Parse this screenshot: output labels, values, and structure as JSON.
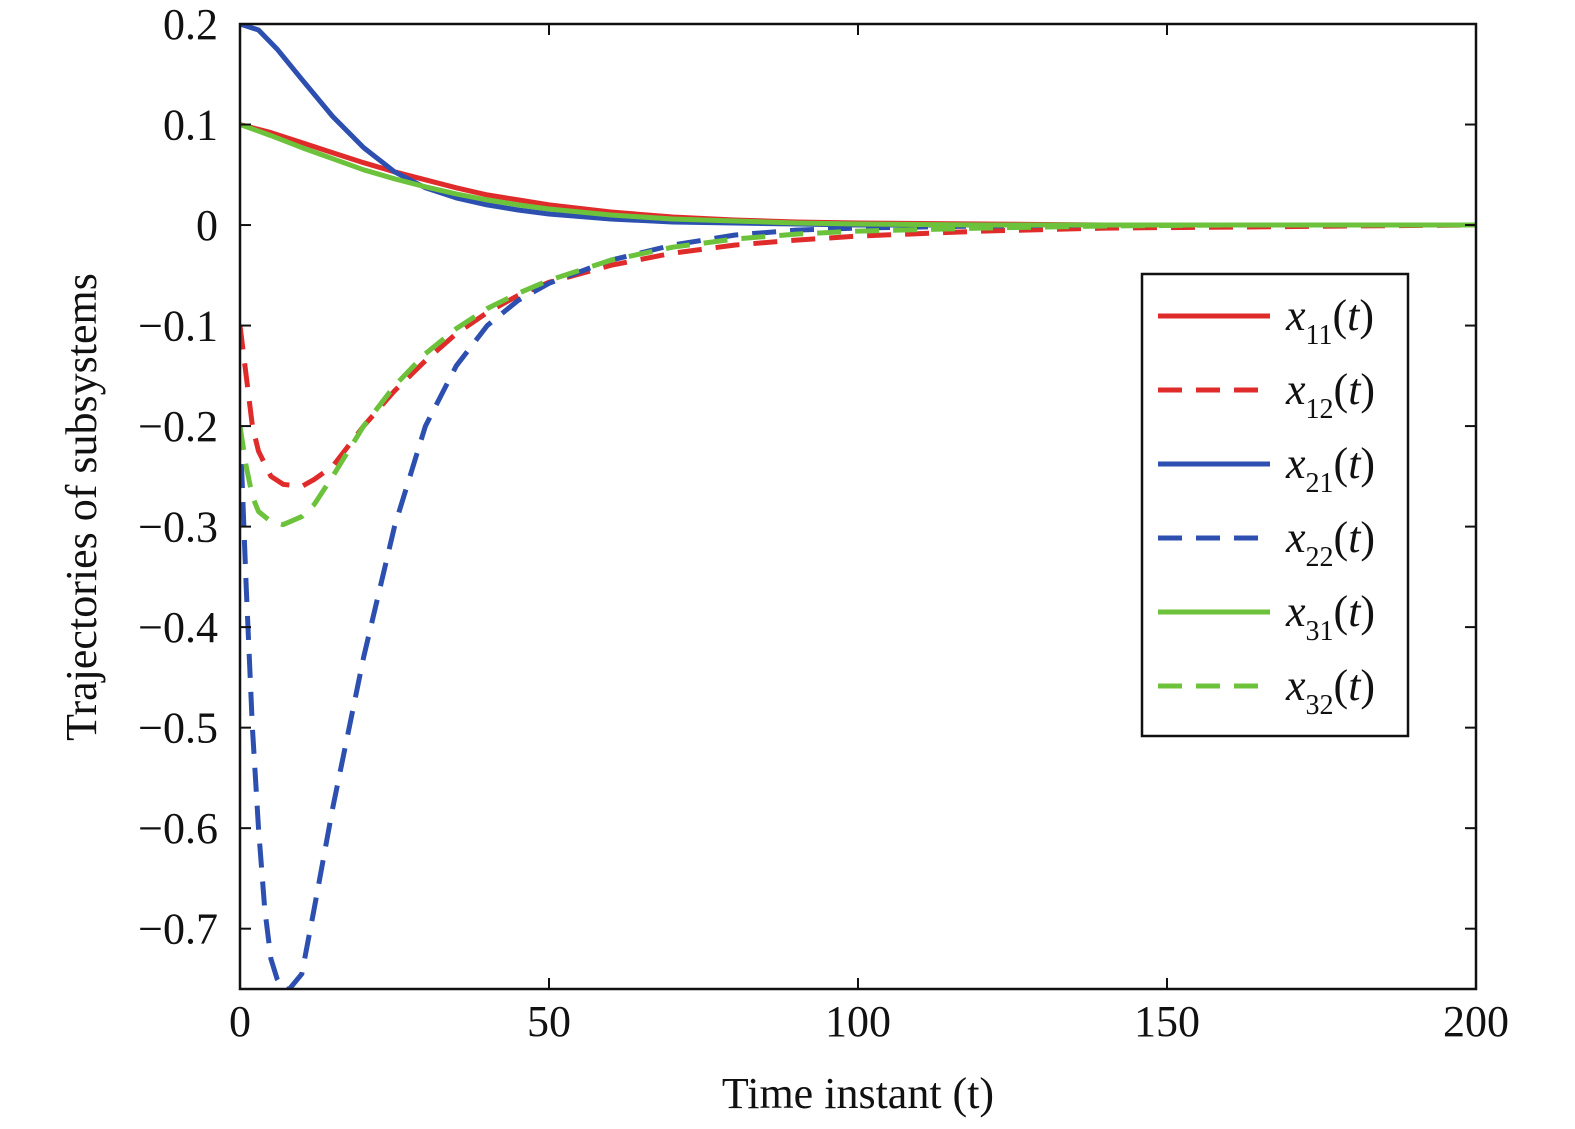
{
  "chart_data": {
    "type": "line",
    "title": "",
    "xlabel": "Time instant (t)",
    "ylabel": "Trajectories of subsystems",
    "xlim": [
      0,
      200
    ],
    "ylim": [
      -0.76,
      0.2
    ],
    "x_ticks": [
      "0",
      "50",
      "100",
      "150",
      "200"
    ],
    "y_ticks": [
      "0.2",
      "0.1",
      "0",
      "−0.1",
      "−0.2",
      "−0.3",
      "−0.4",
      "−0.5",
      "−0.6",
      "−0.7"
    ],
    "grid": false,
    "legend_position": "right",
    "series": [
      {
        "name": "x11(t)",
        "name_main": "x",
        "name_sub": "11",
        "name_tail": "(t)",
        "color": "#e02b2b",
        "style": "solid",
        "x": [
          0,
          5,
          10,
          15,
          20,
          25,
          30,
          35,
          40,
          45,
          50,
          60,
          70,
          80,
          90,
          100,
          120,
          140,
          160,
          180,
          200
        ],
        "y": [
          0.1,
          0.092,
          0.082,
          0.072,
          0.062,
          0.053,
          0.045,
          0.037,
          0.03,
          0.025,
          0.02,
          0.013,
          0.008,
          0.005,
          0.003,
          0.002,
          0.001,
          0.0,
          0.0,
          0.0,
          0.0
        ]
      },
      {
        "name": "x12(t)",
        "name_main": "x",
        "name_sub": "12",
        "name_tail": "(t)",
        "color": "#e02b2b",
        "style": "dashed",
        "x": [
          0,
          1,
          2,
          3,
          5,
          7,
          10,
          12,
          15,
          20,
          25,
          30,
          35,
          40,
          45,
          50,
          60,
          70,
          80,
          90,
          100,
          120,
          140,
          160,
          180,
          200
        ],
        "y": [
          -0.1,
          -0.15,
          -0.2,
          -0.225,
          -0.25,
          -0.258,
          -0.26,
          -0.253,
          -0.24,
          -0.2,
          -0.165,
          -0.135,
          -0.108,
          -0.087,
          -0.07,
          -0.057,
          -0.04,
          -0.028,
          -0.02,
          -0.015,
          -0.011,
          -0.006,
          -0.003,
          -0.002,
          -0.001,
          0.0
        ]
      },
      {
        "name": "x21(t)",
        "name_main": "x",
        "name_sub": "21",
        "name_tail": "(t)",
        "color": "#2c4fb0",
        "style": "solid",
        "x": [
          0,
          3,
          6,
          10,
          15,
          20,
          25,
          30,
          35,
          40,
          45,
          50,
          60,
          70,
          80,
          90,
          100,
          120,
          140,
          160,
          180,
          200
        ],
        "y": [
          0.2,
          0.194,
          0.175,
          0.145,
          0.108,
          0.077,
          0.053,
          0.037,
          0.027,
          0.02,
          0.015,
          0.011,
          0.006,
          0.003,
          0.002,
          0.001,
          0.0,
          0.0,
          0.0,
          0.0,
          0.0,
          0.0
        ]
      },
      {
        "name": "x22(t)",
        "name_main": "x",
        "name_sub": "22",
        "name_tail": "(t)",
        "color": "#2c4fb0",
        "style": "dashed",
        "x": [
          0,
          1,
          2,
          3,
          4,
          5,
          6,
          7,
          8,
          10,
          12,
          15,
          20,
          25,
          30,
          35,
          40,
          45,
          50,
          60,
          70,
          80,
          90,
          100,
          120,
          140,
          160,
          180,
          200
        ],
        "y": [
          -0.2,
          -0.36,
          -0.5,
          -0.6,
          -0.68,
          -0.73,
          -0.75,
          -0.76,
          -0.76,
          -0.745,
          -0.68,
          -0.58,
          -0.43,
          -0.3,
          -0.2,
          -0.14,
          -0.1,
          -0.075,
          -0.058,
          -0.035,
          -0.02,
          -0.01,
          -0.005,
          -0.003,
          -0.001,
          0.0,
          0.0,
          0.0,
          0.0
        ]
      },
      {
        "name": "x31(t)",
        "name_main": "x",
        "name_sub": "31",
        "name_tail": "(t)",
        "color": "#6cc23a",
        "style": "solid",
        "x": [
          0,
          5,
          10,
          15,
          20,
          25,
          30,
          35,
          40,
          45,
          50,
          60,
          70,
          80,
          90,
          100,
          120,
          140,
          160,
          180,
          200
        ],
        "y": [
          0.1,
          0.089,
          0.077,
          0.066,
          0.055,
          0.046,
          0.038,
          0.031,
          0.025,
          0.02,
          0.016,
          0.01,
          0.006,
          0.004,
          0.002,
          0.001,
          0.0,
          0.0,
          0.0,
          0.0,
          0.0
        ]
      },
      {
        "name": "x32(t)",
        "name_main": "x",
        "name_sub": "32",
        "name_tail": "(t)",
        "color": "#6cc23a",
        "style": "dashed",
        "x": [
          0,
          1,
          2,
          3,
          5,
          7,
          10,
          12,
          15,
          20,
          25,
          30,
          35,
          40,
          45,
          50,
          60,
          70,
          80,
          90,
          100,
          120,
          140,
          160,
          180,
          200
        ],
        "y": [
          -0.2,
          -0.24,
          -0.27,
          -0.285,
          -0.295,
          -0.298,
          -0.29,
          -0.278,
          -0.25,
          -0.2,
          -0.16,
          -0.128,
          -0.103,
          -0.083,
          -0.068,
          -0.055,
          -0.035,
          -0.022,
          -0.014,
          -0.009,
          -0.006,
          -0.003,
          -0.001,
          0.0,
          0.0,
          0.0
        ]
      }
    ]
  }
}
